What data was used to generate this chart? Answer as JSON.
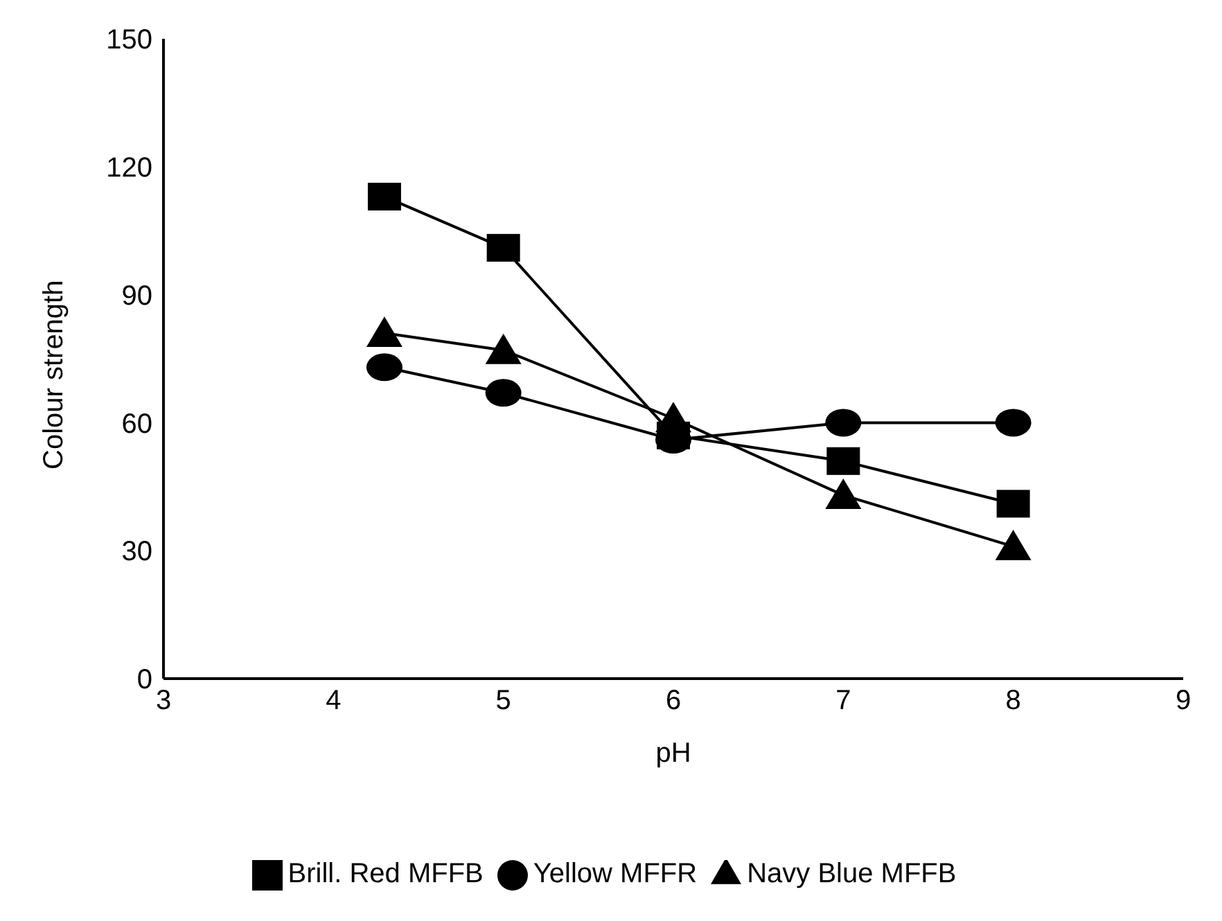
{
  "chart_data": {
    "type": "line",
    "xlabel": "pH",
    "ylabel": "Colour strength",
    "xlim": [
      3,
      9
    ],
    "xticks": [
      3,
      4,
      5,
      6,
      7,
      8,
      9
    ],
    "ylim": [
      0,
      150
    ],
    "yticks": [
      0,
      30,
      60,
      90,
      120,
      150
    ],
    "x": [
      4.3,
      5,
      6,
      7,
      8
    ],
    "legend": "bottom",
    "grid": false,
    "line_style": "solid",
    "series": [
      {
        "name": "Brill. Red MFFB",
        "color": "#000000",
        "marker": "square",
        "values": [
          113,
          101,
          57,
          51,
          41
        ]
      },
      {
        "name": "Yellow MFFR",
        "color": "#000000",
        "marker": "circle",
        "values": [
          73,
          67,
          56,
          60,
          60
        ]
      },
      {
        "name": "Navy Blue MFFB",
        "color": "#000000",
        "marker": "triangle",
        "values": [
          81,
          77,
          61,
          43,
          31
        ]
      }
    ]
  }
}
